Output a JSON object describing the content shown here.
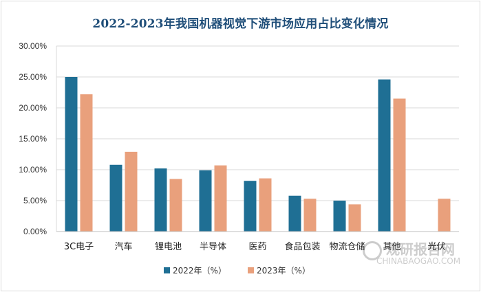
{
  "chart_data": {
    "type": "bar",
    "title": "2022-2023年我国机器视觉下游市场应用占比变化情况",
    "categories": [
      "3C电子",
      "汽车",
      "锂电池",
      "半导体",
      "医药",
      "食品包装",
      "物流仓储",
      "其他",
      "光伏"
    ],
    "series": [
      {
        "name": "2022年（%）",
        "color": "#1f6f94",
        "values": [
          25.0,
          10.8,
          10.2,
          9.9,
          8.2,
          5.8,
          5.0,
          24.6,
          0
        ]
      },
      {
        "name": "2023年（%）",
        "color": "#e9a07c",
        "values": [
          22.2,
          12.9,
          8.5,
          10.7,
          8.6,
          5.3,
          4.4,
          21.5,
          5.3
        ]
      }
    ],
    "ylim": [
      0,
      30
    ],
    "yticks": [
      "0.00%",
      "5.00%",
      "10.00%",
      "15.00%",
      "20.00%",
      "25.00%",
      "30.00%"
    ],
    "grid": true,
    "legend": "bottom-center"
  },
  "watermark": {
    "main": "观研报告网",
    "url": "CHINABAOGAO.COM"
  }
}
